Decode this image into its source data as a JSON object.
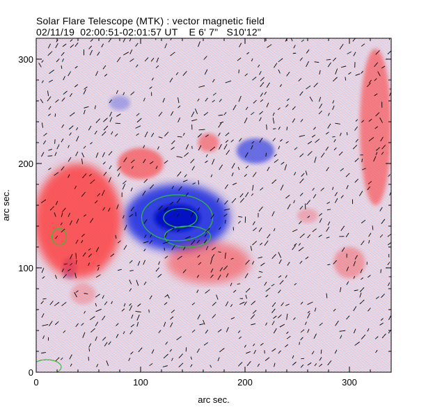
{
  "header": {
    "title": "Solar Flare Telescope (MTK) : vector magnetic field",
    "subtitle": "02/11/19  02:00:51-02:01:57 UT    E 6' 7\"   S10'12\""
  },
  "chart_data": {
    "type": "heatmap",
    "xlabel": "arc sec.",
    "ylabel": "arc sec.",
    "xlim": [
      0,
      340
    ],
    "ylim": [
      0,
      320
    ],
    "xticks": [
      0,
      100,
      200,
      300
    ],
    "yticks": [
      0,
      100,
      200,
      300
    ],
    "colors": {
      "positive": "#ff3030",
      "negative": "#2030e0",
      "core": "#0010c0",
      "contour": "#30c030",
      "vector": "#000000"
    },
    "regions": [
      {
        "polarity": "negative",
        "x": 135,
        "y": 148,
        "rx": 50,
        "ry": 32,
        "strength": 1.0
      },
      {
        "polarity": "negative",
        "x": 135,
        "y": 148,
        "rx": 22,
        "ry": 13,
        "strength": 1.0
      },
      {
        "polarity": "negative",
        "x": 210,
        "y": 212,
        "rx": 18,
        "ry": 12,
        "strength": 0.7
      },
      {
        "polarity": "negative",
        "x": 80,
        "y": 258,
        "rx": 10,
        "ry": 7,
        "strength": 0.35
      },
      {
        "polarity": "negative",
        "x": 32,
        "y": 100,
        "rx": 7,
        "ry": 10,
        "strength": 0.5
      },
      {
        "polarity": "positive",
        "x": 40,
        "y": 145,
        "rx": 42,
        "ry": 55,
        "strength": 0.85
      },
      {
        "polarity": "positive",
        "x": 100,
        "y": 200,
        "rx": 22,
        "ry": 15,
        "strength": 0.65
      },
      {
        "polarity": "positive",
        "x": 165,
        "y": 105,
        "rx": 40,
        "ry": 20,
        "strength": 0.55
      },
      {
        "polarity": "positive",
        "x": 165,
        "y": 220,
        "rx": 10,
        "ry": 9,
        "strength": 0.55
      },
      {
        "polarity": "positive",
        "x": 325,
        "y": 235,
        "rx": 15,
        "ry": 75,
        "strength": 0.6
      },
      {
        "polarity": "positive",
        "x": 300,
        "y": 105,
        "rx": 15,
        "ry": 15,
        "strength": 0.4
      },
      {
        "polarity": "positive",
        "x": 260,
        "y": 150,
        "rx": 10,
        "ry": 7,
        "strength": 0.3
      },
      {
        "polarity": "positive",
        "x": 45,
        "y": 75,
        "rx": 12,
        "ry": 10,
        "strength": 0.3
      }
    ],
    "contours": [
      {
        "x": 135,
        "y": 148,
        "rx": 34,
        "ry": 22
      },
      {
        "x": 138,
        "y": 148,
        "rx": 16,
        "ry": 9
      },
      {
        "x": 145,
        "y": 130,
        "rx": 22,
        "ry": 10
      },
      {
        "x": 22,
        "y": 130,
        "rx": 7,
        "ry": 8
      },
      {
        "x": 10,
        "y": 5,
        "rx": 14,
        "ry": 7
      }
    ]
  }
}
